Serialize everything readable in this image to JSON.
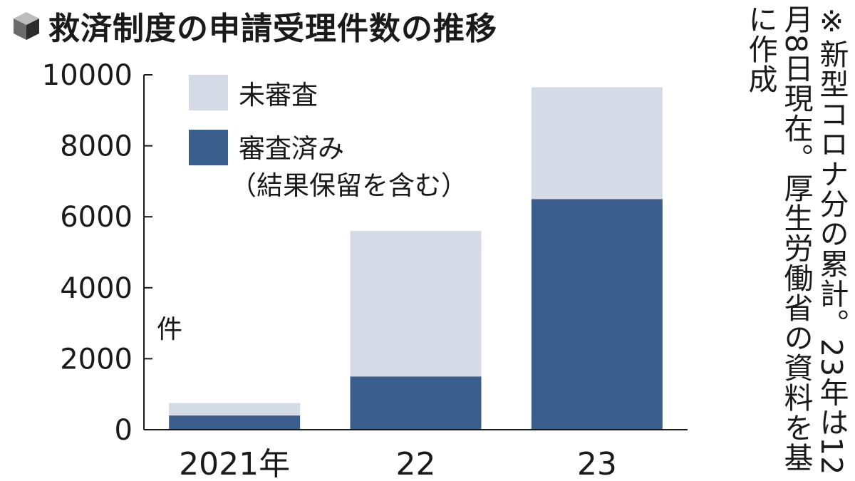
{
  "title": "救済制度の申請受理件数の推移",
  "note": "※新型コロナ分の累計。23年は12月8日現在。厚生労働省の資料を基に作成",
  "chart_data": {
    "type": "bar",
    "stacked": true,
    "categories": [
      "2021年",
      "22",
      "23"
    ],
    "series": [
      {
        "name": "審査済み",
        "values": [
          400,
          1500,
          6500
        ],
        "color": "#3a5f8c"
      },
      {
        "name": "未審査",
        "values": [
          350,
          4100,
          3150
        ],
        "color": "#d5dbe6"
      }
    ],
    "legend": [
      {
        "lines": [
          "未審査"
        ],
        "color": "#d5dbe6"
      },
      {
        "lines": [
          "審査済み",
          "（結果保留を含む）"
        ],
        "color": "#3a5f8c"
      }
    ],
    "y_unit": "件",
    "ylim": [
      0,
      10000
    ],
    "yticks": [
      "0",
      "2000",
      "4000",
      "6000",
      "8000",
      "10000"
    ],
    "xlabel": "",
    "ylabel": "",
    "grid": false,
    "legend_position": "top-left"
  }
}
